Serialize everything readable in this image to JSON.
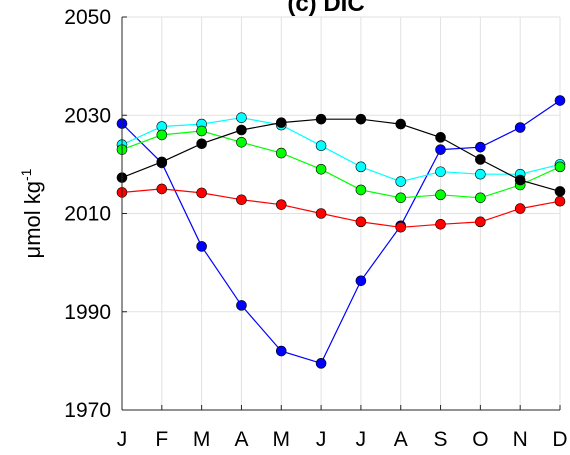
{
  "chart_data": {
    "type": "line",
    "title": "(c) DIC",
    "ylabel": {
      "prefix": "μ",
      "main": "mol kg",
      "superscript": "-1"
    },
    "xlabel": "",
    "categories": [
      "J",
      "F",
      "M",
      "A",
      "M",
      "J",
      "J",
      "A",
      "S",
      "O",
      "N",
      "D"
    ],
    "ylim": [
      1970,
      2050
    ],
    "yticks": [
      1970,
      1990,
      2010,
      2030,
      2050
    ],
    "grid": true,
    "series": [
      {
        "color": "#0000ff",
        "values": [
          2028.3,
          2020.3,
          2003.3,
          1991.3,
          1982.0,
          1979.5,
          1996.3,
          2007.5,
          2023.0,
          2023.5,
          2027.5,
          2033.0
        ]
      },
      {
        "color": "#00ffff",
        "values": [
          2024.0,
          2027.7,
          2028.2,
          2029.5,
          2028.0,
          2023.8,
          2019.5,
          2016.5,
          2018.5,
          2018.0,
          2018.0,
          2020.0
        ]
      },
      {
        "color": "#00ff00",
        "values": [
          2023.0,
          2026.0,
          2026.8,
          2024.5,
          2022.3,
          2019.0,
          2014.8,
          2013.2,
          2013.8,
          2013.2,
          2015.8,
          2019.5
        ]
      },
      {
        "color": "#ff0000",
        "values": [
          2014.3,
          2015.0,
          2014.2,
          2012.8,
          2011.8,
          2010.0,
          2008.3,
          2007.2,
          2007.8,
          2008.3,
          2011.0,
          2012.5
        ]
      },
      {
        "color": "#000000",
        "values": [
          2017.3,
          2020.5,
          2024.2,
          2027.0,
          2028.5,
          2029.2,
          2029.2,
          2028.2,
          2025.5,
          2021.0,
          2016.8,
          2014.5
        ]
      }
    ]
  }
}
